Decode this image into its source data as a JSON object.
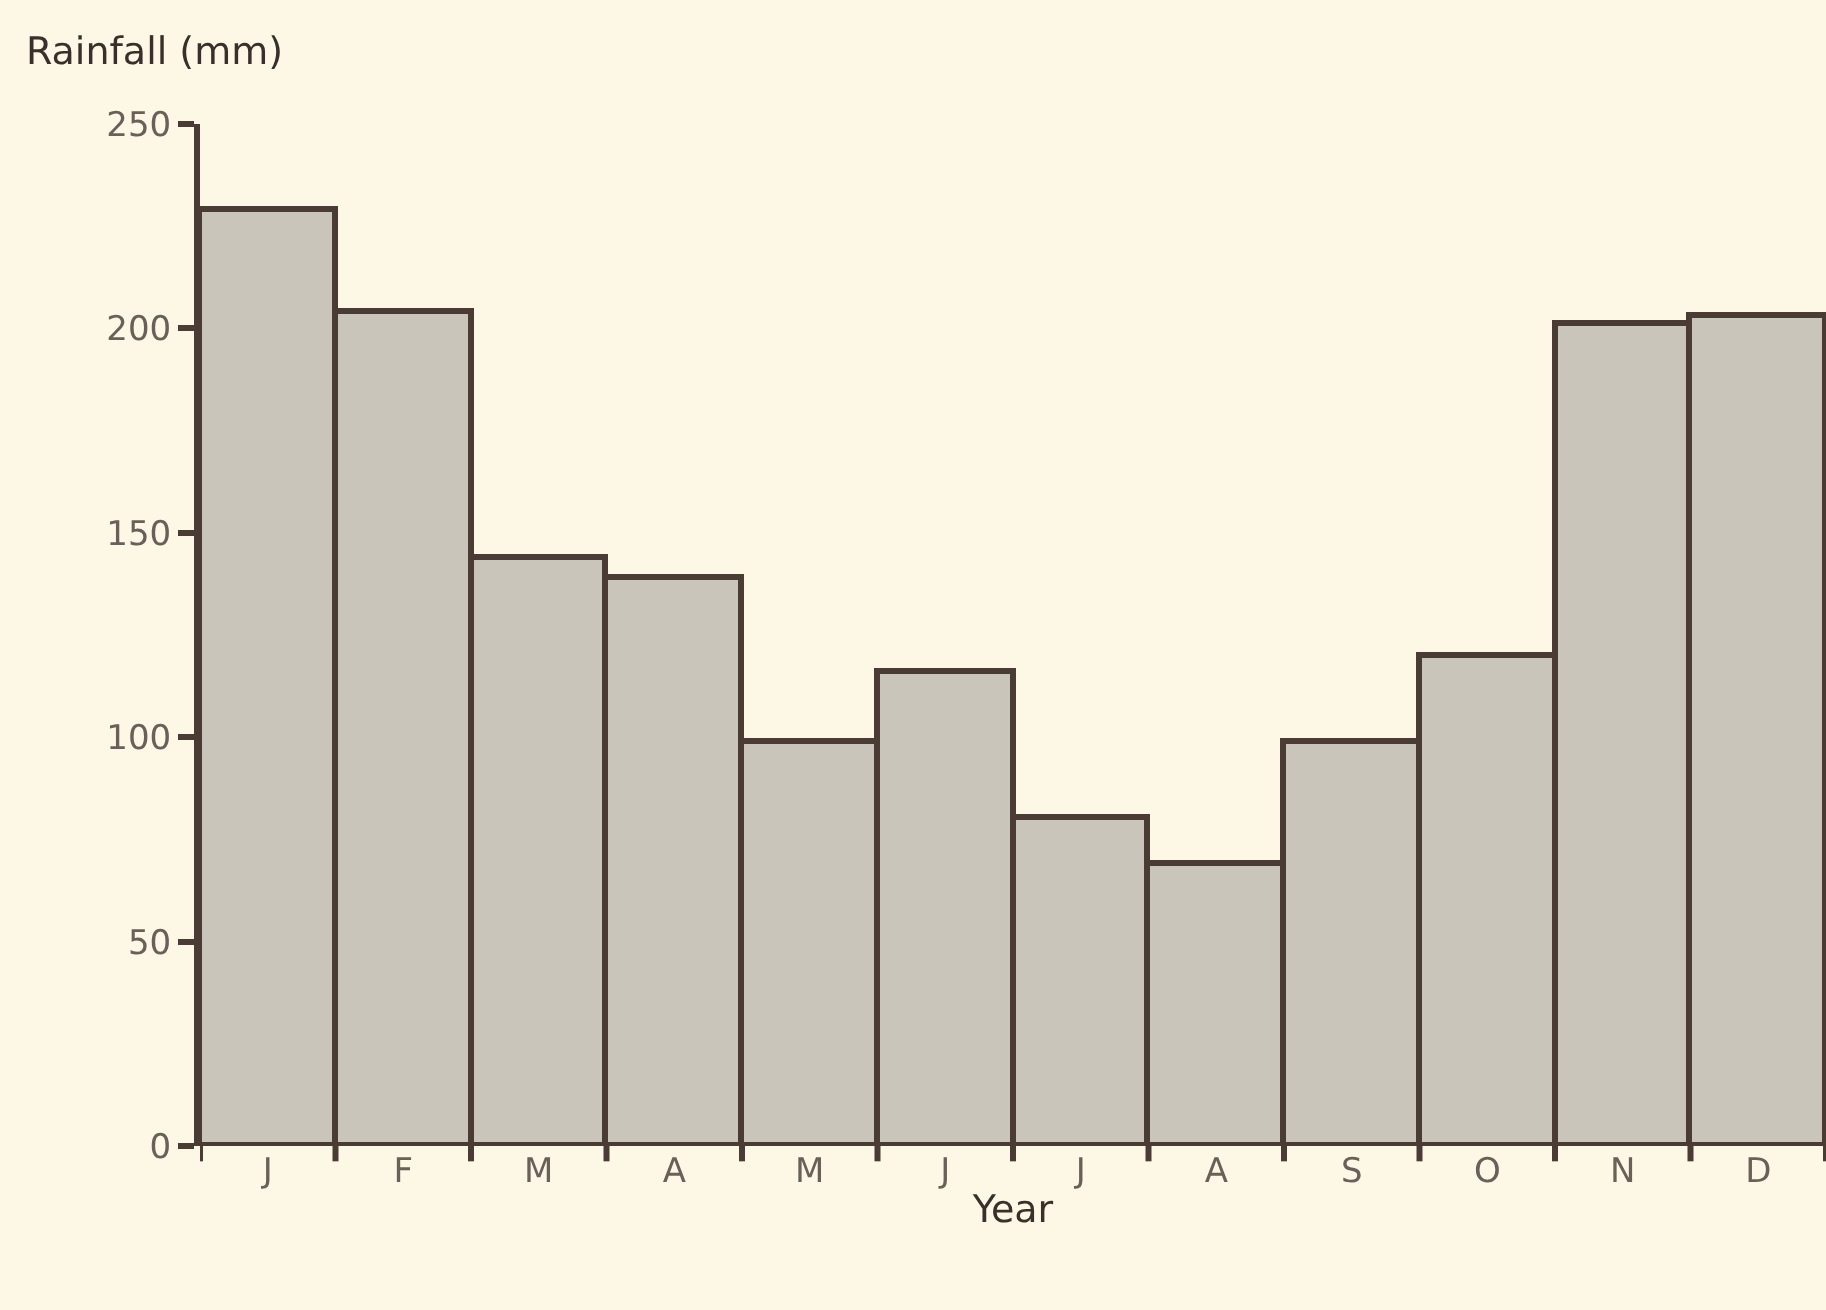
{
  "chart_data": {
    "type": "bar",
    "ylabel": "Rainfall (mm)",
    "xlabel": "Year",
    "categories": [
      "J",
      "F",
      "M",
      "A",
      "M",
      "J",
      "J",
      "A",
      "S",
      "O",
      "N",
      "D"
    ],
    "values": [
      229,
      204,
      144,
      139,
      99,
      116,
      80,
      69,
      99,
      120,
      201,
      203
    ],
    "color": "#c9c5bb",
    "ylim": [
      0,
      250
    ],
    "yticks": [
      0,
      50,
      100,
      150,
      200,
      250
    ],
    "grid": false
  }
}
